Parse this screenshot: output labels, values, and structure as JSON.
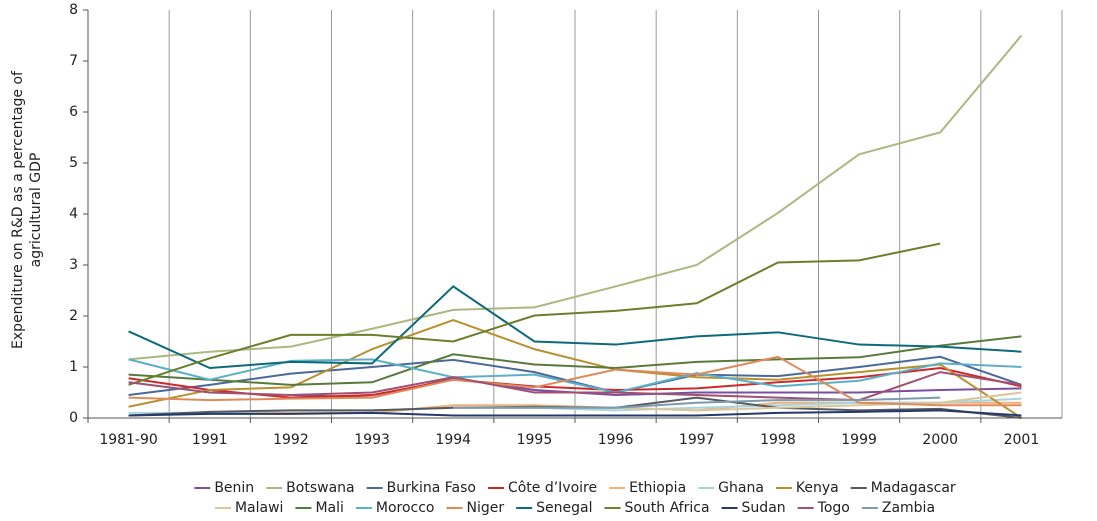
{
  "chart_data": {
    "type": "line",
    "y_label_lines": [
      "Expenditure on R&D as a percentage of",
      "agricultural GDP"
    ],
    "categories": [
      "1981-90",
      "1991",
      "1992",
      "1993",
      "1994",
      "1995",
      "1996",
      "1997",
      "1998",
      "1999",
      "2000",
      "2001"
    ],
    "ylim": [
      0,
      8
    ],
    "yticks": [
      0,
      1,
      2,
      3,
      4,
      5,
      6,
      7,
      8
    ],
    "grid": "vertical",
    "series": [
      {
        "name": "Benin",
        "color": "#7b4fa0",
        "values": [
          null,
          null,
          0.45,
          0.4,
          0.78,
          0.55,
          0.45,
          0.5,
          0.5,
          0.5,
          0.55,
          0.58
        ]
      },
      {
        "name": "Botswana",
        "color": "#a9b97f",
        "values": [
          1.15,
          1.3,
          1.4,
          1.75,
          2.12,
          2.17,
          2.58,
          3.0,
          4.02,
          5.17,
          5.6,
          7.5
        ]
      },
      {
        "name": "Burkina Faso",
        "color": "#4a6a9a",
        "values": [
          0.45,
          0.65,
          0.87,
          1.0,
          1.14,
          0.9,
          0.5,
          0.85,
          0.82,
          1.0,
          1.2,
          0.65
        ]
      },
      {
        "name": "Côte d’Ivoire",
        "color": "#cc2a2a",
        "values": [
          0.78,
          0.55,
          0.4,
          0.45,
          0.75,
          0.62,
          0.55,
          0.58,
          0.7,
          0.8,
          0.98,
          0.62
        ]
      },
      {
        "name": "Ethiopia",
        "color": "#f0b27a",
        "values": [
          0.05,
          0.1,
          0.1,
          0.1,
          0.25,
          0.25,
          0.2,
          0.15,
          0.3,
          0.3,
          0.3,
          0.3
        ]
      },
      {
        "name": "Ghana",
        "color": "#a9d4e0",
        "values": [
          0.1,
          0.1,
          0.15,
          0.15,
          0.2,
          0.2,
          0.15,
          0.2,
          0.25,
          0.3,
          0.3,
          0.38
        ]
      },
      {
        "name": "Kenya",
        "color": "#b8902e",
        "values": [
          0.22,
          0.55,
          0.6,
          1.35,
          1.92,
          1.35,
          0.95,
          0.8,
          0.75,
          0.9,
          1.05,
          0
        ]
      },
      {
        "name": "Madagascar",
        "color": "#555a60",
        "values": [
          0.05,
          0.12,
          0.15,
          0.15,
          0.2,
          0.22,
          0.2,
          0.4,
          0.2,
          0.15,
          0.18,
          0
        ]
      },
      {
        "name": "Malawi",
        "color": "#d9c79a",
        "values": [
          null,
          null,
          null,
          null,
          0.2,
          0.2,
          0.2,
          0.15,
          0.2,
          0.25,
          0.3,
          0.5
        ]
      },
      {
        "name": "Mali",
        "color": "#5a7a3a",
        "values": [
          0.85,
          0.75,
          0.65,
          0.7,
          1.25,
          1.05,
          0.98,
          1.1,
          1.15,
          1.19,
          1.42,
          1.6
        ]
      },
      {
        "name": "Morocco",
        "color": "#5bb0c8",
        "values": [
          1.15,
          0.75,
          1.12,
          1.15,
          0.8,
          0.85,
          0.5,
          0.88,
          0.62,
          0.73,
          1.07,
          1.0
        ]
      },
      {
        "name": "Niger",
        "color": "#e08a5a",
        "values": [
          0.4,
          0.35,
          0.38,
          0.4,
          0.75,
          0.6,
          0.95,
          0.85,
          1.2,
          0.3,
          0.25,
          0.25
        ]
      },
      {
        "name": "Senegal",
        "color": "#0d6a7a",
        "values": [
          1.7,
          0.98,
          1.1,
          1.07,
          2.58,
          1.5,
          1.44,
          1.6,
          1.68,
          1.44,
          1.4,
          1.3
        ]
      },
      {
        "name": "South Africa",
        "color": "#6b7f2a",
        "values": [
          0.65,
          1.17,
          1.63,
          1.63,
          1.5,
          2.01,
          2.1,
          2.25,
          3.05,
          3.09,
          3.42,
          null
        ]
      },
      {
        "name": "Sudan",
        "color": "#253a6a",
        "values": [
          0.05,
          0.08,
          0.08,
          0.1,
          0.05,
          0.05,
          0.05,
          0.05,
          0.1,
          0.12,
          0.15,
          0.05
        ]
      },
      {
        "name": "Togo",
        "color": "#a05070",
        "values": [
          0.7,
          0.5,
          0.45,
          0.5,
          0.8,
          0.5,
          0.5,
          0.45,
          0.4,
          0.35,
          0.9,
          0.65
        ]
      },
      {
        "name": "Zambia",
        "color": "#7a9ab0",
        "values": [
          null,
          null,
          null,
          null,
          0.2,
          0.2,
          0.2,
          0.3,
          0.35,
          0.35,
          0.4,
          null
        ]
      }
    ]
  }
}
